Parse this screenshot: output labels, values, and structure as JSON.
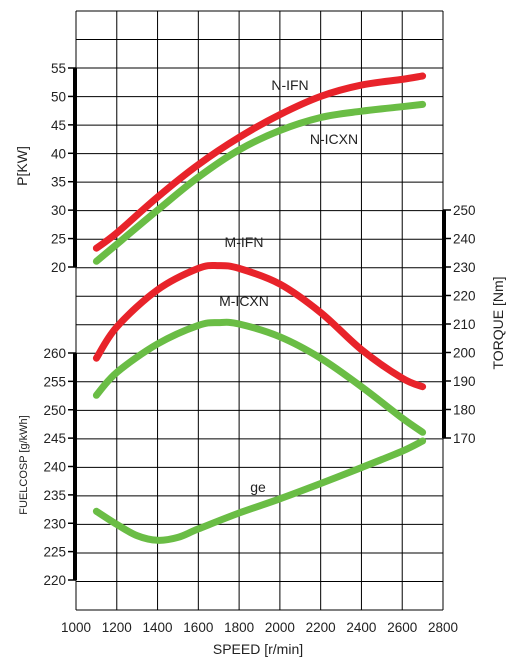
{
  "chart_data": {
    "type": "line",
    "grid": true,
    "x": {
      "label": "SPEED [r/min]",
      "range": [
        1000,
        2800
      ],
      "ticks": [
        1000,
        1200,
        1400,
        1600,
        1800,
        2000,
        2200,
        2400,
        2600,
        2800
      ]
    },
    "axes": {
      "power": {
        "label": "P[KW]",
        "side": "left",
        "range": [
          20,
          55
        ],
        "ticks": [
          20,
          25,
          30,
          35,
          40,
          45,
          50,
          55
        ]
      },
      "torque": {
        "label": "TORQUE [Nm]",
        "side": "right",
        "range": [
          170,
          250
        ],
        "ticks": [
          170,
          180,
          190,
          200,
          210,
          220,
          230,
          240,
          250
        ]
      },
      "fuel": {
        "label": "FUELCOSP [g/kWh]",
        "side": "left",
        "range": [
          220,
          260
        ],
        "ticks": [
          220,
          225,
          230,
          235,
          240,
          245,
          250,
          255,
          260
        ]
      }
    },
    "series": [
      {
        "name": "N-IFN",
        "axis": "power",
        "color": "#e8232a",
        "x": [
          1100,
          1200,
          1400,
          1600,
          1800,
          2000,
          2200,
          2400,
          2600,
          2700
        ],
        "y": [
          23.3,
          26.0,
          32.3,
          38.0,
          42.8,
          46.8,
          50.0,
          52.0,
          53.0,
          53.6
        ]
      },
      {
        "name": "N-ICXN",
        "axis": "power",
        "color": "#6abd45",
        "x": [
          1100,
          1200,
          1400,
          1600,
          1800,
          2000,
          2200,
          2400,
          2600,
          2700
        ],
        "y": [
          21.0,
          24.0,
          30.0,
          35.8,
          40.6,
          44.0,
          46.3,
          47.4,
          48.2,
          48.6
        ]
      },
      {
        "name": "M-IFN",
        "axis": "torque",
        "color": "#e8232a",
        "x": [
          1100,
          1200,
          1400,
          1600,
          1700,
          1800,
          2000,
          2200,
          2400,
          2600,
          2700
        ],
        "y": [
          198,
          209,
          222,
          229.5,
          230.5,
          229.5,
          224,
          214,
          201,
          191,
          188
        ]
      },
      {
        "name": "M-ICXN",
        "axis": "torque",
        "color": "#6abd45",
        "x": [
          1100,
          1200,
          1400,
          1600,
          1700,
          1800,
          2000,
          2200,
          2400,
          2600,
          2700
        ],
        "y": [
          185,
          193,
          203,
          209.5,
          210.5,
          210,
          205.5,
          198,
          188,
          177,
          172
        ]
      },
      {
        "name": "ge",
        "axis": "fuel",
        "color": "#6abd45",
        "x": [
          1100,
          1200,
          1300,
          1400,
          1500,
          1600,
          1800,
          2000,
          2200,
          2400,
          2600,
          2700
        ],
        "y": [
          232.1,
          229.8,
          227.8,
          227.0,
          227.5,
          229.0,
          231.8,
          234.3,
          237.0,
          239.8,
          242.7,
          244.5
        ]
      }
    ]
  }
}
